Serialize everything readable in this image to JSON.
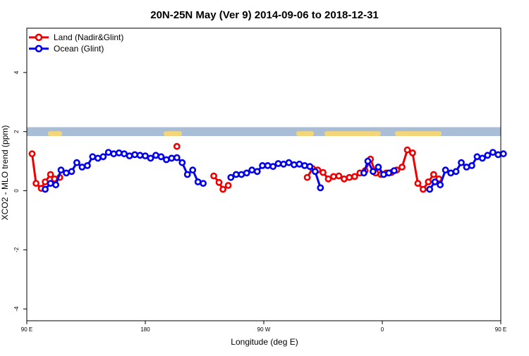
{
  "chart_data": {
    "type": "line",
    "title": "20N-25N May (Ver 9)   2014-09-06 to 2018-12-31",
    "xlabel": "Longitude (deg E)",
    "ylabel": "XCO2 - MLO trend (ppm)",
    "xlim": [
      90,
      450
    ],
    "ylim": [
      -4.4,
      5.5
    ],
    "x_ticks": [
      {
        "value": 90,
        "label": "90 E"
      },
      {
        "value": 180,
        "label": "180"
      },
      {
        "value": 270,
        "label": "90 W"
      },
      {
        "value": 360,
        "label": "0"
      },
      {
        "value": 450,
        "label": "90 E"
      },
      {
        "value": 540,
        "label": "180"
      }
    ],
    "y_ticks": [
      -4,
      -2,
      0,
      2,
      4
    ],
    "grid": false,
    "legend_position": "top-left",
    "map_band": {
      "ymin": 1.85,
      "ymax": 2.15,
      "ocean_color": "#a9bdd6",
      "land_color": "#f3d57a"
    },
    "series": [
      {
        "name": "Land (Nadir&Glint)",
        "color": "#ee0000",
        "segments": [
          [
            [
              94,
              1.25
            ],
            [
              97,
              0.25
            ],
            [
              101,
              0.08
            ],
            [
              104,
              0.3
            ],
            [
              108,
              0.55
            ],
            [
              111,
              0.4
            ],
            [
              115,
              0.45
            ]
          ],
          [
            [
              204,
              1.5
            ]
          ],
          [
            [
              232,
              0.5
            ],
            [
              236,
              0.28
            ],
            [
              239,
              0.05
            ],
            [
              243,
              0.18
            ]
          ],
          [
            [
              303,
              0.45
            ],
            [
              307,
              0.75
            ],
            [
              311,
              0.7
            ],
            [
              315,
              0.62
            ],
            [
              319,
              0.4
            ],
            [
              323,
              0.48
            ],
            [
              327,
              0.5
            ],
            [
              331,
              0.4
            ],
            [
              335,
              0.45
            ],
            [
              339,
              0.48
            ],
            [
              343,
              0.6
            ],
            [
              347,
              0.68
            ],
            [
              351,
              1.07
            ],
            [
              355,
              0.6
            ],
            [
              359,
              0.55
            ],
            [
              363,
              0.6
            ],
            [
              367,
              0.62
            ],
            [
              371,
              0.7
            ],
            [
              375,
              0.8
            ],
            [
              379,
              1.38
            ],
            [
              383,
              1.28
            ],
            [
              387,
              0.25
            ],
            [
              391,
              0.05
            ],
            [
              395,
              0.3
            ],
            [
              399,
              0.55
            ],
            [
              403,
              0.4
            ]
          ]
        ]
      },
      {
        "name": "Ocean (Glint)",
        "color": "#0000ee",
        "segments": [
          [
            [
              104,
              0.05
            ],
            [
              108,
              0.25
            ],
            [
              112,
              0.2
            ],
            [
              116,
              0.7
            ],
            [
              120,
              0.6
            ],
            [
              124,
              0.65
            ],
            [
              128,
              0.95
            ],
            [
              132,
              0.8
            ],
            [
              136,
              0.85
            ],
            [
              140,
              1.15
            ],
            [
              144,
              1.1
            ],
            [
              148,
              1.15
            ],
            [
              152,
              1.3
            ],
            [
              156,
              1.25
            ],
            [
              160,
              1.28
            ],
            [
              164,
              1.25
            ],
            [
              168,
              1.18
            ],
            [
              172,
              1.22
            ],
            [
              176,
              1.2
            ],
            [
              180,
              1.18
            ],
            [
              184,
              1.1
            ],
            [
              188,
              1.2
            ],
            [
              192,
              1.15
            ],
            [
              196,
              1.05
            ],
            [
              200,
              1.1
            ],
            [
              204,
              1.12
            ],
            [
              208,
              0.95
            ],
            [
              212,
              0.55
            ],
            [
              216,
              0.7
            ],
            [
              220,
              0.3
            ],
            [
              224,
              0.25
            ]
          ],
          [
            [
              245,
              0.45
            ],
            [
              249,
              0.55
            ],
            [
              253,
              0.55
            ],
            [
              257,
              0.6
            ],
            [
              261,
              0.7
            ],
            [
              265,
              0.65
            ],
            [
              269,
              0.85
            ],
            [
              273,
              0.85
            ],
            [
              277,
              0.82
            ],
            [
              281,
              0.92
            ],
            [
              285,
              0.9
            ],
            [
              289,
              0.95
            ],
            [
              293,
              0.88
            ],
            [
              297,
              0.9
            ],
            [
              301,
              0.85
            ],
            [
              305,
              0.82
            ],
            [
              309,
              0.65
            ],
            [
              313,
              0.1
            ]
          ],
          [
            [
              346,
              0.6
            ],
            [
              349,
              1.0
            ],
            [
              353,
              0.65
            ],
            [
              357,
              0.8
            ],
            [
              361,
              0.55
            ],
            [
              365,
              0.6
            ],
            [
              369,
              0.68
            ]
          ],
          [
            [
              396,
              0.05
            ],
            [
              400,
              0.3
            ],
            [
              404,
              0.2
            ],
            [
              408,
              0.7
            ],
            [
              412,
              0.6
            ],
            [
              416,
              0.65
            ],
            [
              420,
              0.95
            ],
            [
              424,
              0.8
            ],
            [
              428,
              0.85
            ],
            [
              432,
              1.15
            ],
            [
              436,
              1.1
            ],
            [
              440,
              1.2
            ],
            [
              444,
              1.3
            ],
            [
              448,
              1.22
            ],
            [
              452,
              1.25
            ]
          ]
        ]
      }
    ]
  }
}
